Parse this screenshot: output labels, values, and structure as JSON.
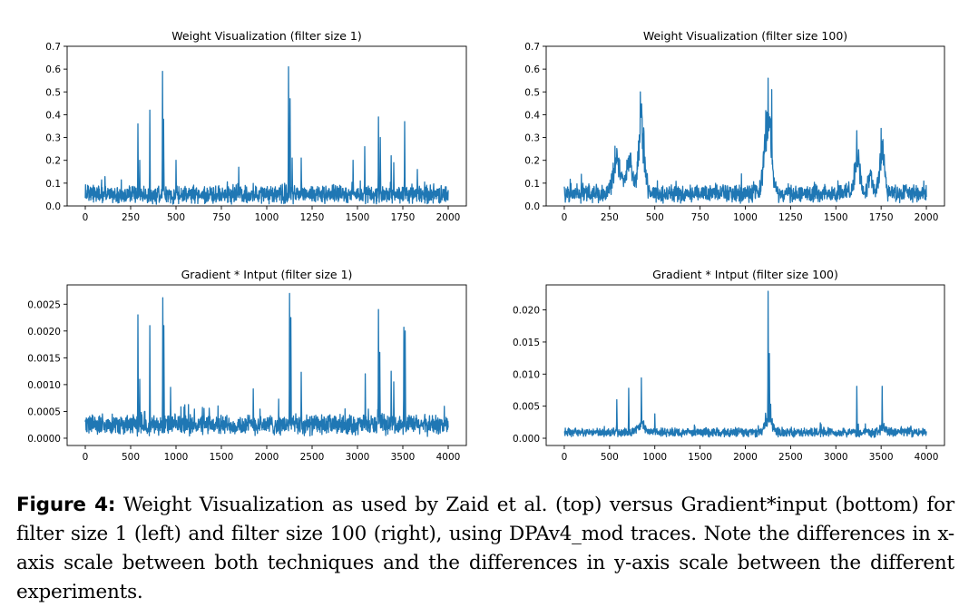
{
  "chart_data": [
    {
      "type": "line",
      "title": "Weight Visualization (filter size 1)",
      "xlabel": "",
      "ylabel": "",
      "xlim": [
        -100,
        2100
      ],
      "ylim": [
        0.0,
        0.7
      ],
      "xticks": [
        0,
        250,
        500,
        750,
        1000,
        1250,
        1500,
        1750,
        2000
      ],
      "xtick_labels": [
        "0",
        "250",
        "500",
        "750",
        "1000",
        "1250",
        "1500",
        "1750",
        "2000"
      ],
      "yticks": [
        0.0,
        0.1,
        0.2,
        0.3,
        0.4,
        0.5,
        0.6,
        0.7
      ],
      "ytick_labels": [
        "0.0",
        "0.1",
        "0.2",
        "0.3",
        "0.4",
        "0.5",
        "0.6",
        "0.7"
      ],
      "grid": false,
      "color": "#1f77b4",
      "series": [
        {
          "name": "weights",
          "x_range": [
            0,
            2000
          ],
          "baseline": {
            "mean": 0.05,
            "amplitude": 0.045
          },
          "peaks": [
            [
              290,
              0.36
            ],
            [
              300,
              0.2
            ],
            [
              355,
              0.42
            ],
            [
              425,
              0.59
            ],
            [
              432,
              0.38
            ],
            [
              500,
              0.2
            ],
            [
              845,
              0.17
            ],
            [
              1120,
              0.61
            ],
            [
              1128,
              0.47
            ],
            [
              1140,
              0.21
            ],
            [
              1190,
              0.21
            ],
            [
              1475,
              0.2
            ],
            [
              1540,
              0.26
            ],
            [
              1615,
              0.39
            ],
            [
              1625,
              0.3
            ],
            [
              1685,
              0.22
            ],
            [
              1700,
              0.19
            ],
            [
              1760,
              0.37
            ],
            [
              1830,
              0.16
            ]
          ]
        }
      ]
    },
    {
      "type": "line",
      "title": "Weight Visualization (filter size 100)",
      "xlabel": "",
      "ylabel": "",
      "xlim": [
        -100,
        2100
      ],
      "ylim": [
        0.0,
        0.7
      ],
      "xticks": [
        0,
        250,
        500,
        750,
        1000,
        1250,
        1500,
        1750,
        2000
      ],
      "xtick_labels": [
        "0",
        "250",
        "500",
        "750",
        "1000",
        "1250",
        "1500",
        "1750",
        "2000"
      ],
      "yticks": [
        0.0,
        0.1,
        0.2,
        0.3,
        0.4,
        0.5,
        0.6,
        0.7
      ],
      "ytick_labels": [
        "0.0",
        "0.1",
        "0.2",
        "0.3",
        "0.4",
        "0.5",
        "0.6",
        "0.7"
      ],
      "grid": false,
      "color": "#1f77b4",
      "series": [
        {
          "name": "weights",
          "x_range": [
            0,
            2000
          ],
          "baseline": {
            "mean": 0.055,
            "amplitude": 0.045
          },
          "bumps": [
            [
              290,
              0.2,
              30
            ],
            [
              360,
              0.18,
              25
            ],
            [
              425,
              0.4,
              22
            ],
            [
              1125,
              0.45,
              25
            ],
            [
              1620,
              0.22,
              20
            ],
            [
              1690,
              0.1,
              15
            ],
            [
              1755,
              0.24,
              18
            ]
          ],
          "peaks": [
            [
              420,
              0.5
            ],
            [
              1125,
              0.56
            ],
            [
              1145,
              0.51
            ],
            [
              1615,
              0.33
            ],
            [
              1750,
              0.34
            ]
          ]
        }
      ]
    },
    {
      "type": "line",
      "title": "Gradient * Intput (filter size 1)",
      "xlabel": "",
      "ylabel": "",
      "xlim": [
        -200,
        4200
      ],
      "ylim": [
        -0.000136,
        0.00286
      ],
      "xticks": [
        0,
        500,
        1000,
        1500,
        2000,
        2500,
        3000,
        3500,
        4000
      ],
      "xtick_labels": [
        "0",
        "500",
        "1000",
        "1500",
        "2000",
        "2500",
        "3000",
        "3500",
        "4000"
      ],
      "yticks": [
        0.0,
        0.0005,
        0.001,
        0.0015,
        0.002,
        0.0025
      ],
      "ytick_labels": [
        "0.0000",
        "0.0005",
        "0.0010",
        "0.0015",
        "0.0020",
        "0.0025"
      ],
      "grid": false,
      "color": "#1f77b4",
      "series": [
        {
          "name": "gradient_x_input",
          "x_range": [
            0,
            4000
          ],
          "baseline": {
            "mean": 0.00025,
            "amplitude": 0.00022
          },
          "peaks": [
            [
              580,
              0.0023
            ],
            [
              600,
              0.0011
            ],
            [
              710,
              0.0021
            ],
            [
              855,
              0.00262
            ],
            [
              865,
              0.0021
            ],
            [
              940,
              0.00095
            ],
            [
              1850,
              0.00092
            ],
            [
              2250,
              0.0027
            ],
            [
              2265,
              0.00225
            ],
            [
              2380,
              0.00123
            ],
            [
              3085,
              0.0012
            ],
            [
              3230,
              0.0024
            ],
            [
              3245,
              0.0016
            ],
            [
              3370,
              0.00125
            ],
            [
              3400,
              0.00105
            ],
            [
              3510,
              0.00207
            ],
            [
              3525,
              0.002
            ]
          ]
        }
      ]
    },
    {
      "type": "line",
      "title": "Gradient * Intput (filter size 100)",
      "xlabel": "",
      "ylabel": "",
      "xlim": [
        -200,
        4200
      ],
      "ylim": [
        -0.00113,
        0.0239
      ],
      "xticks": [
        0,
        500,
        1000,
        1500,
        2000,
        2500,
        3000,
        3500,
        4000
      ],
      "xtick_labels": [
        "0",
        "500",
        "1000",
        "1500",
        "2000",
        "2500",
        "3000",
        "3500",
        "4000"
      ],
      "yticks": [
        0.0,
        0.005,
        0.01,
        0.015,
        0.02
      ],
      "ytick_labels": [
        "0.000",
        "0.005",
        "0.010",
        "0.015",
        "0.020"
      ],
      "grid": false,
      "color": "#1f77b4",
      "series": [
        {
          "name": "gradient_x_input",
          "x_range": [
            0,
            4000
          ],
          "baseline": {
            "mean": 0.0009,
            "amplitude": 0.0008
          },
          "bumps": [
            [
              850,
              0.0015,
              60
            ],
            [
              2260,
              0.0025,
              60
            ],
            [
              3520,
              0.001,
              40
            ]
          ],
          "peaks": [
            [
              580,
              0.006
            ],
            [
              710,
              0.0078
            ],
            [
              850,
              0.0094
            ],
            [
              1000,
              0.0038
            ],
            [
              2250,
              0.0229
            ],
            [
              2265,
              0.0132
            ],
            [
              2280,
              0.0053
            ],
            [
              3230,
              0.0081
            ],
            [
              3510,
              0.0081
            ]
          ]
        }
      ]
    }
  ],
  "caption": {
    "label": "Figure 4:",
    "text": "Weight Visualization as used by Zaid et al. (top) versus Gradient*input (bottom) for filter size 1 (left) and filter size 100 (right), using DPAv4_mod traces. Note the differences in x-axis scale between both techniques and the differences in y-axis scale between the different experiments."
  }
}
